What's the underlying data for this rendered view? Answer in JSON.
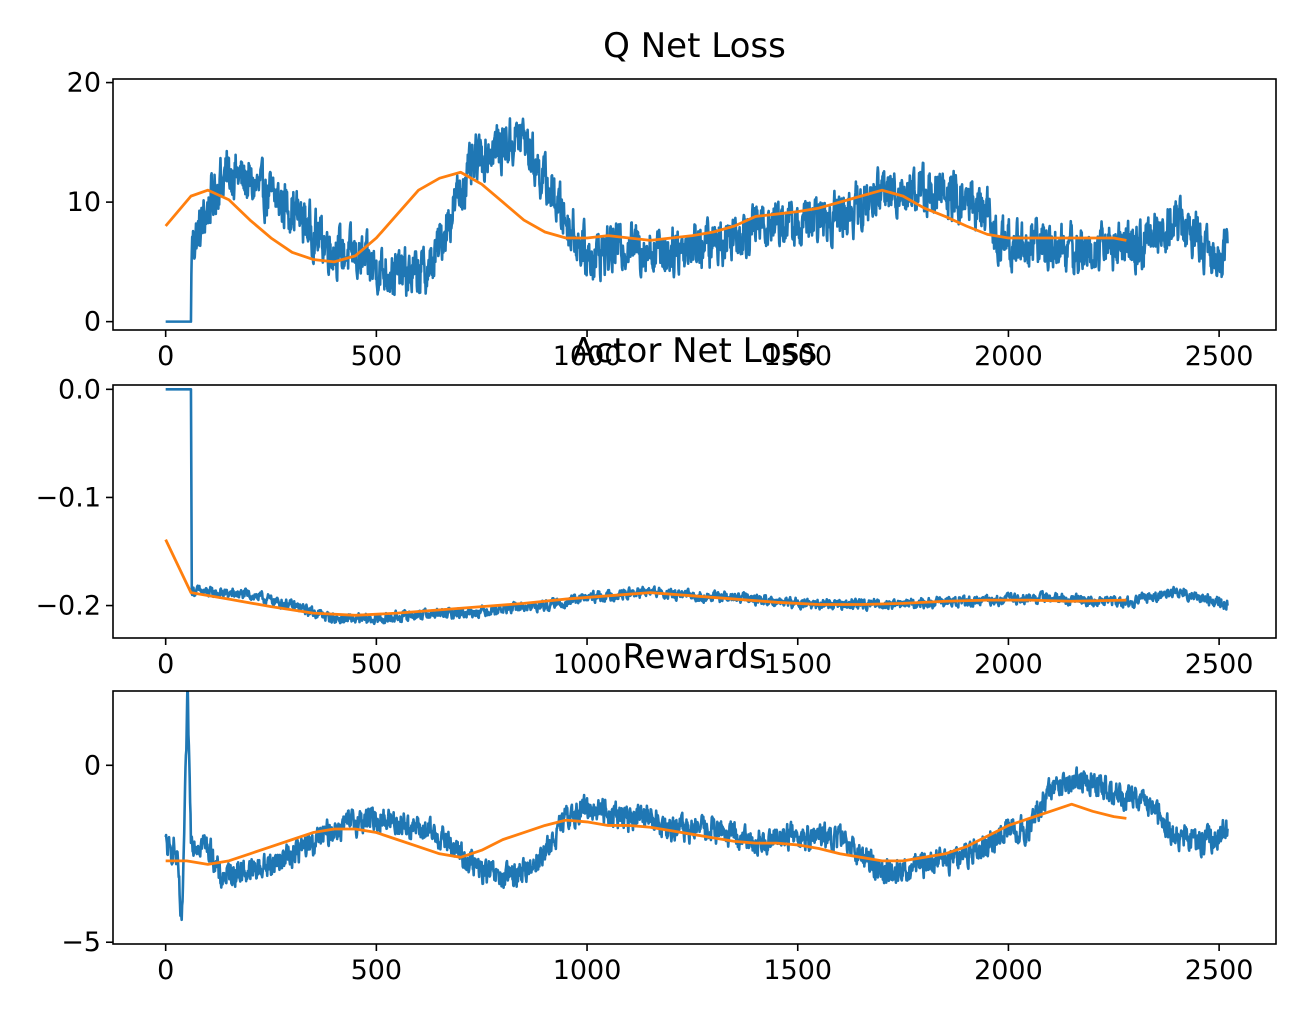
{
  "figure": {
    "background": "#ffffff"
  },
  "colors": {
    "raw": "#1f77b4",
    "smooth": "#ff7f0e"
  },
  "chart_data": [
    {
      "type": "line",
      "title": "Q Net Loss",
      "xlabel": "",
      "ylabel": "",
      "xlim": [
        -125,
        2635
      ],
      "ylim": [
        -0.7,
        20.3
      ],
      "xticks": [
        0,
        500,
        1000,
        1500,
        2000,
        2500
      ],
      "yticks": [
        0,
        10,
        20
      ],
      "grid": false,
      "series": [
        {
          "role": "raw",
          "color": "#1f77b4",
          "noise": 1.7,
          "x": [
            0,
            60,
            62,
            80,
            100,
            130,
            160,
            200,
            250,
            300,
            350,
            400,
            450,
            500,
            550,
            600,
            630,
            660,
            700,
            740,
            780,
            820,
            850,
            880,
            920,
            960,
            1000,
            1050,
            1100,
            1150,
            1200,
            1250,
            1300,
            1350,
            1400,
            1450,
            1500,
            1550,
            1600,
            1650,
            1700,
            1750,
            1800,
            1850,
            1900,
            1950,
            1960,
            2000,
            2050,
            2100,
            2150,
            2200,
            2250,
            2300,
            2350,
            2400,
            2450,
            2500,
            2520
          ],
          "y": [
            0,
            0,
            6.5,
            7.5,
            9.5,
            12,
            12.5,
            11.5,
            10.5,
            9.5,
            7.5,
            6.0,
            5.5,
            4.5,
            4.0,
            4.0,
            4.5,
            7.5,
            11.0,
            13.5,
            14.5,
            15.0,
            15.5,
            13.0,
            10.5,
            8.0,
            5.5,
            6.0,
            6.5,
            6.0,
            6.0,
            6.5,
            6.5,
            7.5,
            8.0,
            8.5,
            8.0,
            8.5,
            9.0,
            9.5,
            11.0,
            11.0,
            11.0,
            10.5,
            10.0,
            9.5,
            7.0,
            6.5,
            6.5,
            6.5,
            6.0,
            6.0,
            6.5,
            6.0,
            7.5,
            8.5,
            7.0,
            5.5,
            5.5
          ]
        },
        {
          "role": "smooth",
          "color": "#ff7f0e",
          "x": [
            0,
            60,
            100,
            150,
            200,
            250,
            300,
            350,
            400,
            450,
            500,
            550,
            600,
            650,
            700,
            750,
            800,
            850,
            900,
            950,
            1000,
            1050,
            1100,
            1150,
            1200,
            1250,
            1300,
            1350,
            1400,
            1450,
            1500,
            1550,
            1600,
            1650,
            1700,
            1750,
            1800,
            1850,
            1900,
            1950,
            2000,
            2050,
            2100,
            2150,
            2200,
            2250,
            2280
          ],
          "y": [
            8.0,
            10.5,
            11.0,
            10.2,
            8.5,
            7.0,
            5.8,
            5.2,
            5.0,
            5.5,
            7.0,
            9.0,
            11.0,
            12.0,
            12.5,
            11.5,
            10.0,
            8.5,
            7.5,
            7.0,
            7.0,
            7.2,
            7.0,
            6.8,
            7.0,
            7.2,
            7.5,
            8.0,
            8.8,
            9.0,
            9.2,
            9.5,
            10.0,
            10.5,
            11.0,
            10.5,
            9.5,
            8.8,
            8.0,
            7.3,
            7.0,
            7.0,
            7.0,
            7.0,
            7.0,
            7.0,
            6.8
          ]
        }
      ]
    },
    {
      "type": "line",
      "title": "Actor Net Loss",
      "xlabel": "",
      "ylabel": "",
      "xlim": [
        -125,
        2635
      ],
      "ylim": [
        -0.23,
        0.004
      ],
      "xticks": [
        0,
        500,
        1000,
        1500,
        2000,
        2500
      ],
      "yticks": [
        0.0,
        -0.1,
        -0.2
      ],
      "ytick_labels": [
        "0.0",
        "−0.1",
        "−0.2"
      ],
      "grid": false,
      "series": [
        {
          "role": "raw",
          "color": "#1f77b4",
          "noise": 0.004,
          "x": [
            0,
            60,
            62,
            100,
            200,
            300,
            400,
            500,
            600,
            700,
            800,
            900,
            1000,
            1100,
            1150,
            1200,
            1300,
            1400,
            1500,
            1600,
            1700,
            1800,
            1900,
            2000,
            2100,
            2200,
            2300,
            2400,
            2450,
            2500,
            2520
          ],
          "y": [
            0.0,
            0.0,
            -0.186,
            -0.188,
            -0.19,
            -0.2,
            -0.212,
            -0.213,
            -0.208,
            -0.207,
            -0.203,
            -0.2,
            -0.193,
            -0.189,
            -0.187,
            -0.19,
            -0.192,
            -0.194,
            -0.198,
            -0.199,
            -0.198,
            -0.198,
            -0.196,
            -0.194,
            -0.193,
            -0.196,
            -0.196,
            -0.186,
            -0.193,
            -0.197,
            -0.2
          ]
        },
        {
          "role": "smooth",
          "color": "#ff7f0e",
          "x": [
            0,
            60,
            150,
            250,
            350,
            450,
            550,
            650,
            750,
            850,
            950,
            1050,
            1150,
            1250,
            1350,
            1450,
            1550,
            1650,
            1750,
            1850,
            1950,
            2050,
            2150,
            2280
          ],
          "y": [
            -0.139,
            -0.188,
            -0.194,
            -0.201,
            -0.207,
            -0.209,
            -0.207,
            -0.204,
            -0.201,
            -0.198,
            -0.194,
            -0.191,
            -0.188,
            -0.191,
            -0.194,
            -0.197,
            -0.199,
            -0.199,
            -0.198,
            -0.196,
            -0.195,
            -0.195,
            -0.196,
            -0.195
          ]
        }
      ]
    },
    {
      "type": "line",
      "title": "Rewards",
      "xlabel": "",
      "ylabel": "",
      "xlim": [
        -125,
        2635
      ],
      "ylim": [
        -5.05,
        2.1
      ],
      "xticks": [
        0,
        500,
        1000,
        1500,
        2000,
        2500
      ],
      "yticks": [
        0,
        -5
      ],
      "ytick_labels": [
        "0",
        "−5"
      ],
      "grid": false,
      "series": [
        {
          "role": "raw",
          "color": "#1f77b4",
          "noise": 0.3,
          "x": [
            0,
            10,
            20,
            30,
            38,
            45,
            52,
            60,
            70,
            90,
            110,
            130,
            160,
            200,
            250,
            300,
            350,
            400,
            450,
            500,
            550,
            600,
            650,
            700,
            750,
            800,
            850,
            900,
            950,
            1000,
            1050,
            1100,
            1150,
            1200,
            1250,
            1300,
            1350,
            1400,
            1450,
            1500,
            1550,
            1600,
            1650,
            1700,
            1750,
            1800,
            1850,
            1900,
            1950,
            2000,
            2050,
            2100,
            2150,
            2200,
            2250,
            2300,
            2350,
            2400,
            2450,
            2500,
            2520
          ],
          "y": [
            -2.2,
            -2.5,
            -2.3,
            -3.0,
            -4.8,
            -1.5,
            2.0,
            -2.0,
            -2.2,
            -2.2,
            -2.5,
            -3.2,
            -3.0,
            -3.0,
            -2.8,
            -2.5,
            -2.2,
            -1.8,
            -1.6,
            -1.5,
            -1.6,
            -1.8,
            -2.0,
            -2.5,
            -3.0,
            -3.2,
            -3.0,
            -2.5,
            -1.5,
            -1.2,
            -1.3,
            -1.5,
            -1.5,
            -1.8,
            -1.8,
            -1.8,
            -2.0,
            -2.2,
            -2.0,
            -2.0,
            -2.0,
            -2.1,
            -2.5,
            -3.0,
            -3.0,
            -2.8,
            -2.7,
            -2.5,
            -2.2,
            -1.8,
            -1.8,
            -0.7,
            -0.4,
            -0.5,
            -0.8,
            -0.9,
            -1.4,
            -2.0,
            -2.2,
            -2.0,
            -1.8
          ]
        },
        {
          "role": "smooth",
          "color": "#ff7f0e",
          "x": [
            0,
            50,
            100,
            150,
            200,
            250,
            300,
            350,
            400,
            450,
            500,
            550,
            600,
            650,
            700,
            750,
            800,
            850,
            900,
            950,
            1000,
            1050,
            1100,
            1150,
            1200,
            1250,
            1300,
            1350,
            1400,
            1450,
            1500,
            1550,
            1600,
            1650,
            1700,
            1750,
            1800,
            1850,
            1900,
            1950,
            2000,
            2050,
            2100,
            2150,
            2200,
            2250,
            2280
          ],
          "y": [
            -2.7,
            -2.7,
            -2.8,
            -2.7,
            -2.5,
            -2.3,
            -2.1,
            -1.9,
            -1.8,
            -1.8,
            -1.9,
            -2.1,
            -2.3,
            -2.5,
            -2.6,
            -2.4,
            -2.1,
            -1.9,
            -1.7,
            -1.55,
            -1.6,
            -1.7,
            -1.7,
            -1.75,
            -1.85,
            -1.95,
            -2.05,
            -2.15,
            -2.2,
            -2.2,
            -2.25,
            -2.35,
            -2.5,
            -2.6,
            -2.7,
            -2.7,
            -2.6,
            -2.5,
            -2.3,
            -2.0,
            -1.7,
            -1.5,
            -1.3,
            -1.1,
            -1.3,
            -1.45,
            -1.5
          ]
        }
      ]
    }
  ]
}
